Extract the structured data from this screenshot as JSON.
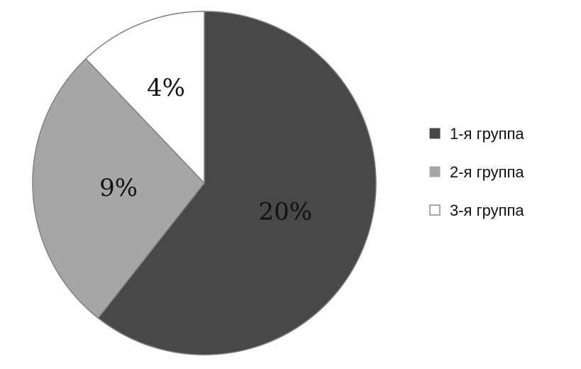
{
  "chart_data": {
    "type": "pie",
    "title": "",
    "slices": [
      {
        "name": "1-я группа",
        "value": 20,
        "label": "20%",
        "color": "#484848"
      },
      {
        "name": "2-я группа",
        "value": 9,
        "label": "9%",
        "color": "#a6a6a6"
      },
      {
        "name": "3-я группа",
        "value": 4,
        "label": "4%",
        "color": "#ffffff"
      }
    ],
    "start_angle": "top",
    "direction": "clockwise",
    "legend_placement": "right",
    "stroke_color": "#808080"
  }
}
